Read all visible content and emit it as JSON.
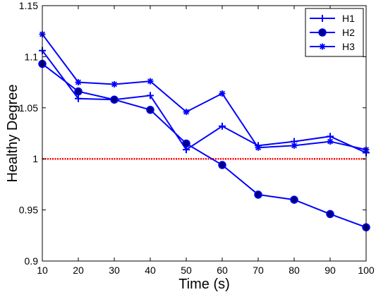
{
  "chart_data": {
    "type": "line",
    "title": "",
    "xlabel": "Time (s)",
    "ylabel": "Healthy Degree",
    "xlim": [
      10,
      100
    ],
    "ylim": [
      0.9,
      1.15
    ],
    "x": [
      10,
      20,
      30,
      40,
      50,
      60,
      70,
      80,
      90,
      100
    ],
    "x_ticks": [
      10,
      20,
      30,
      40,
      50,
      60,
      70,
      80,
      90,
      100
    ],
    "y_ticks": [
      0.9,
      0.95,
      1,
      1.05,
      1.1,
      1.15
    ],
    "y_tick_labels": [
      "0.9",
      "0.95",
      "1",
      "1.05",
      "1.1",
      "1.15"
    ],
    "grid": false,
    "legend_position": "top-right",
    "series": [
      {
        "name": "H1",
        "marker": "plus",
        "color": "#0000ff",
        "values": [
          1.106,
          1.059,
          1.058,
          1.062,
          1.009,
          1.032,
          1.013,
          1.017,
          1.022,
          1.006
        ]
      },
      {
        "name": "H2",
        "marker": "filled-circle",
        "color": "#0000ff",
        "values": [
          1.093,
          1.066,
          1.058,
          1.048,
          1.015,
          0.994,
          0.965,
          0.96,
          0.946,
          0.933
        ]
      },
      {
        "name": "H3",
        "marker": "star",
        "color": "#0000ff",
        "values": [
          1.122,
          1.075,
          1.073,
          1.076,
          1.046,
          1.064,
          1.011,
          1.013,
          1.017,
          1.009
        ]
      }
    ],
    "reference_line": {
      "y": 1,
      "color": "#ff0000",
      "style": "dotted"
    }
  }
}
